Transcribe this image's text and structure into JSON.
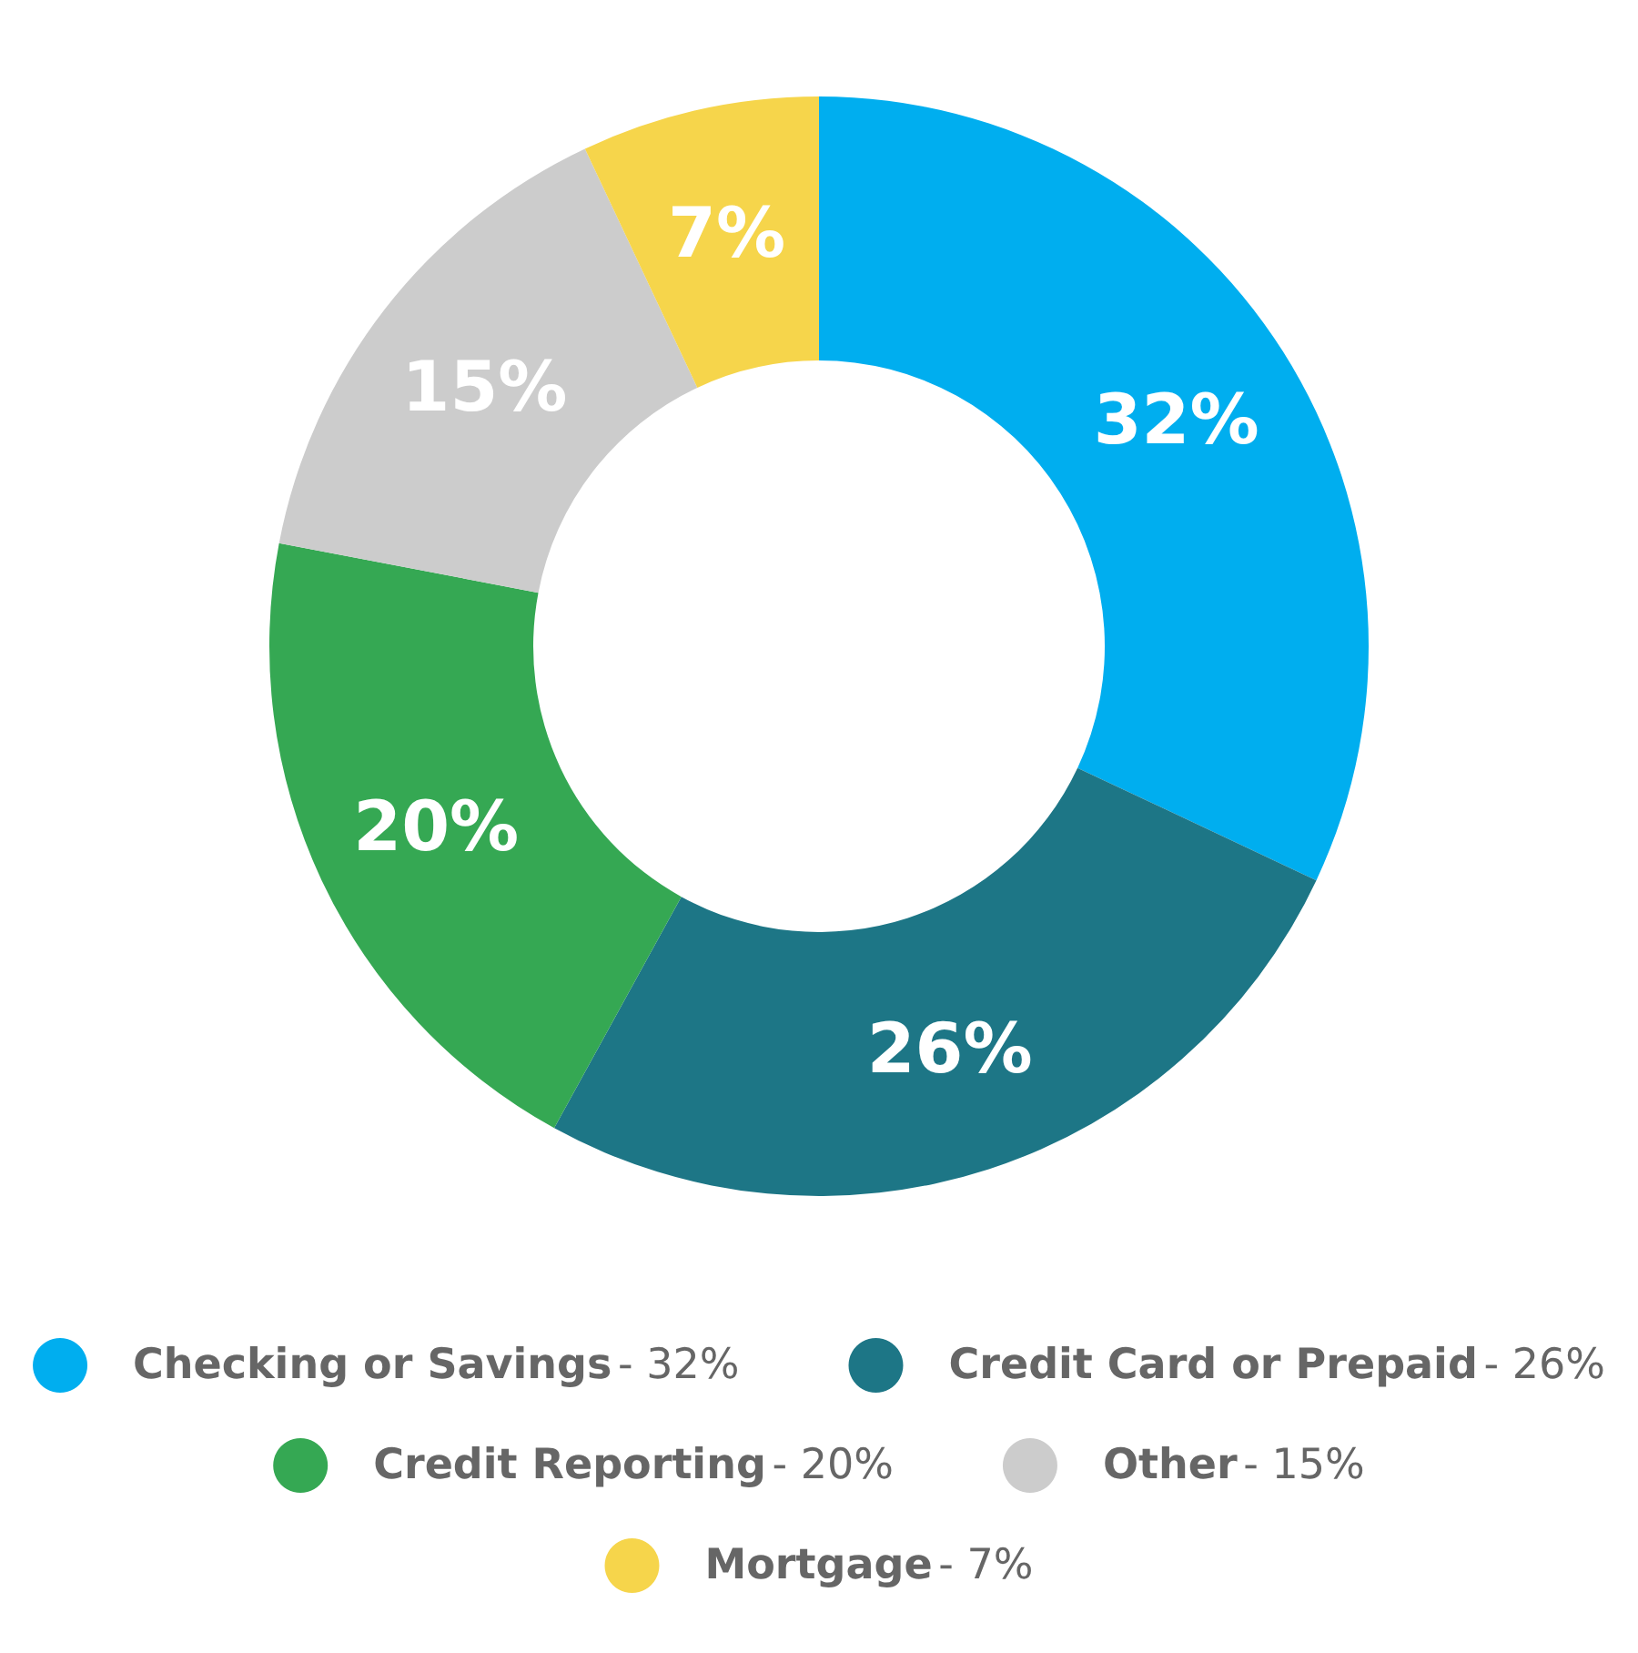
{
  "chart_data": {
    "type": "donut",
    "categories": [
      "Checking or Savings",
      "Credit Card or Prepaid",
      "Credit Reporting",
      "Other",
      "Mortgage"
    ],
    "values": [
      32,
      26,
      20,
      15,
      7
    ],
    "value_labels": [
      "32%",
      "26%",
      "20%",
      "15%",
      "7%"
    ],
    "annotations": [
      "- 32%",
      "- 26%",
      "- 20%",
      "- 15%",
      "- 7%"
    ],
    "colors": [
      "#00aeef",
      "#1d7686",
      "#35a853",
      "#cccccc",
      "#f6d54b"
    ],
    "legend": "bottom"
  }
}
